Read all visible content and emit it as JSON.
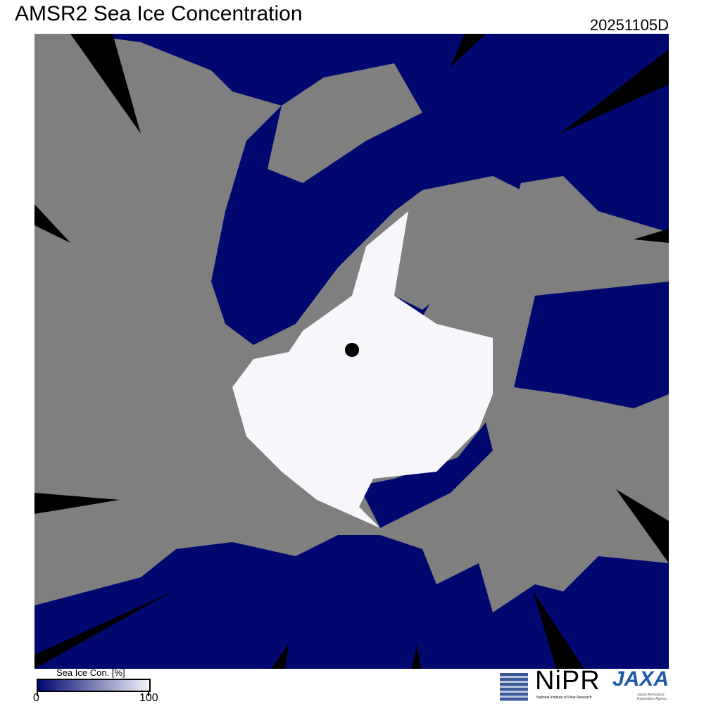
{
  "header": {
    "title": "AMSR2 Sea Ice Concentration",
    "date": "20251105D"
  },
  "legend": {
    "title": "Sea Ice Con. [%]",
    "min_label": "0",
    "max_label": "100",
    "color_low": "#000870",
    "color_high": "#f4f4fa"
  },
  "colors": {
    "land": "#7f7f7f",
    "ocean": "#000870",
    "ice": "#f6f6fb",
    "no_data": "#000000"
  },
  "logos": {
    "nipr": "NiPR",
    "nipr_sub": "National Institute of Polar Research",
    "jaxa": "JAXA",
    "jaxa_sub": "Japan Aerospace Exploration Agency"
  }
}
